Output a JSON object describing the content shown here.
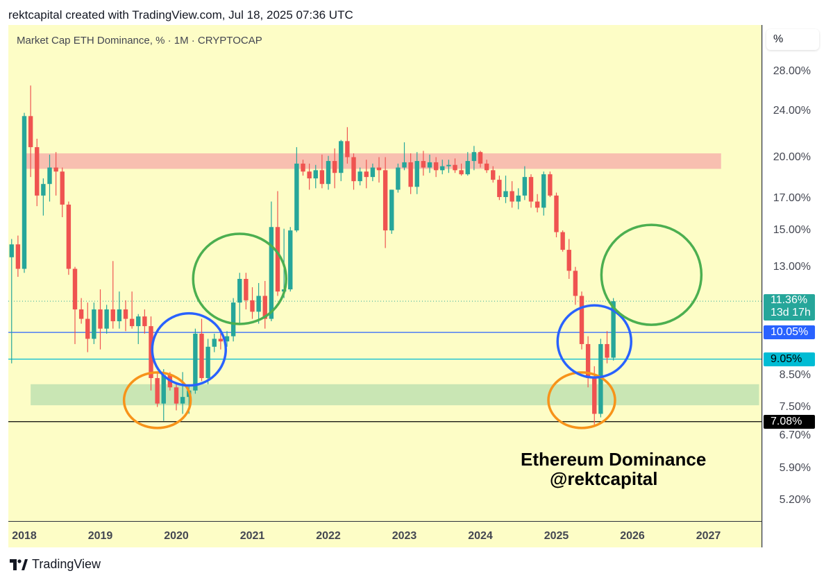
{
  "header": {
    "text": "rektcapital created with TradingView.com, Jul 18, 2025 07:36 UTC"
  },
  "symbol_label": "Market Cap ETH Dominance, % · 1M · CRYPTOCAP",
  "scale_button": "%",
  "watermark": {
    "line1": "Ethereum Dominance",
    "line2": "@rektcapital"
  },
  "footer": {
    "brand": "TradingView",
    "logo_icon": "tradingview-logo-icon"
  },
  "colors": {
    "background": "#fdfdc6",
    "up": "#26a69a",
    "down": "#ef5350",
    "resistance_zone": "#f8bfb0",
    "support_zone": "#c9e6b4",
    "orange_circle": "#f7931a",
    "blue_circle": "#2962ff",
    "green_circle": "#4caf50"
  },
  "chart_data": {
    "type": "candlestick",
    "title": "Market Cap ETH Dominance, % · 1M · CRYPTOCAP",
    "y_scale": "log",
    "y_ticks": [
      "28.00%",
      "24.00%",
      "20.00%",
      "17.00%",
      "15.00%",
      "13.00%",
      "8.50%",
      "7.50%",
      "6.70%",
      "5.90%",
      "5.20%"
    ],
    "x_ticks": [
      "2018",
      "2019",
      "2020",
      "2021",
      "2022",
      "2023",
      "2024",
      "2025",
      "2026",
      "2027"
    ],
    "price_badges": [
      {
        "label": "11.36%",
        "sub": "13d 17h",
        "value": 11.36,
        "bg": "#26a69a",
        "fg": "#ffffff"
      },
      {
        "label": "10.05%",
        "value": 10.05,
        "bg": "#2962ff",
        "fg": "#ffffff"
      },
      {
        "label": "9.05%",
        "value": 9.05,
        "bg": "#00bcd4",
        "fg": "#000000"
      },
      {
        "label": "7.08%",
        "value": 7.08,
        "bg": "#000000",
        "fg": "#ffffff"
      }
    ],
    "horizontal_lines": [
      {
        "value": 10.05,
        "color": "#2962ff"
      },
      {
        "value": 9.05,
        "color": "#00bcd4"
      },
      {
        "value": 7.08,
        "color": "#000000"
      },
      {
        "value": 11.36,
        "color": "#26a69a",
        "dotted": true
      }
    ],
    "zones": [
      {
        "name": "resistance",
        "from": 19.1,
        "to": 20.3,
        "x_start": "2018-01",
        "x_end": "2027-03"
      },
      {
        "name": "support",
        "from": 7.55,
        "to": 8.2,
        "x_start": "2018-02",
        "x_end": "2027-09"
      }
    ],
    "annotations": [
      {
        "shape": "circle",
        "color": "orange",
        "center_date": "2019-10",
        "center_value": 7.7
      },
      {
        "shape": "circle",
        "color": "blue",
        "center_date": "2020-03",
        "center_value": 9.4
      },
      {
        "shape": "circle",
        "color": "green",
        "center_date": "2020-11",
        "center_value": 12.4
      },
      {
        "shape": "circle",
        "color": "orange",
        "center_date": "2025-05",
        "center_value": 7.7
      },
      {
        "shape": "circle",
        "color": "blue",
        "center_date": "2025-07",
        "center_value": 9.7
      },
      {
        "shape": "circle",
        "color": "green",
        "center_date": "2026-04",
        "center_value": 12.6
      }
    ],
    "candles": [
      {
        "t": "2017-11",
        "o": 13.5,
        "h": 14.5,
        "l": 8.9,
        "c": 14.2
      },
      {
        "t": "2017-12",
        "o": 14.2,
        "h": 14.7,
        "l": 12.5,
        "c": 12.9
      },
      {
        "t": "2018-01",
        "o": 12.9,
        "h": 23.8,
        "l": 12.7,
        "c": 23.5
      },
      {
        "t": "2018-02",
        "o": 23.5,
        "h": 26.5,
        "l": 18.5,
        "c": 20.8
      },
      {
        "t": "2018-03",
        "o": 20.8,
        "h": 21.5,
        "l": 16.5,
        "c": 17.2
      },
      {
        "t": "2018-04",
        "o": 17.2,
        "h": 18.4,
        "l": 15.9,
        "c": 18.0
      },
      {
        "t": "2018-05",
        "o": 18.0,
        "h": 20.2,
        "l": 16.8,
        "c": 19.2
      },
      {
        "t": "2018-06",
        "o": 19.2,
        "h": 20.4,
        "l": 17.2,
        "c": 18.9
      },
      {
        "t": "2018-07",
        "o": 18.9,
        "h": 19.2,
        "l": 15.8,
        "c": 16.6
      },
      {
        "t": "2018-08",
        "o": 16.6,
        "h": 16.8,
        "l": 12.6,
        "c": 12.9
      },
      {
        "t": "2018-09",
        "o": 12.9,
        "h": 13.0,
        "l": 9.6,
        "c": 11.0
      },
      {
        "t": "2018-10",
        "o": 11.0,
        "h": 11.5,
        "l": 10.4,
        "c": 10.6
      },
      {
        "t": "2018-11",
        "o": 10.6,
        "h": 11.3,
        "l": 9.3,
        "c": 9.8
      },
      {
        "t": "2018-12",
        "o": 9.8,
        "h": 11.3,
        "l": 9.6,
        "c": 11.0
      },
      {
        "t": "2019-01",
        "o": 11.0,
        "h": 11.9,
        "l": 9.4,
        "c": 10.2
      },
      {
        "t": "2019-02",
        "o": 10.2,
        "h": 11.2,
        "l": 10.0,
        "c": 11.0
      },
      {
        "t": "2019-03",
        "o": 11.0,
        "h": 13.3,
        "l": 10.2,
        "c": 10.5
      },
      {
        "t": "2019-04",
        "o": 10.5,
        "h": 11.8,
        "l": 10.2,
        "c": 11.0
      },
      {
        "t": "2019-05",
        "o": 11.0,
        "h": 11.4,
        "l": 10.1,
        "c": 10.6
      },
      {
        "t": "2019-06",
        "o": 10.6,
        "h": 11.8,
        "l": 10.2,
        "c": 10.3
      },
      {
        "t": "2019-07",
        "o": 10.3,
        "h": 10.8,
        "l": 9.6,
        "c": 10.7
      },
      {
        "t": "2019-08",
        "o": 10.7,
        "h": 11.0,
        "l": 10.0,
        "c": 10.3
      },
      {
        "t": "2019-09",
        "o": 10.3,
        "h": 10.7,
        "l": 8.0,
        "c": 8.4
      },
      {
        "t": "2019-10",
        "o": 8.4,
        "h": 8.6,
        "l": 7.5,
        "c": 7.6
      },
      {
        "t": "2019-11",
        "o": 7.6,
        "h": 8.7,
        "l": 7.1,
        "c": 8.5
      },
      {
        "t": "2019-12",
        "o": 8.5,
        "h": 8.6,
        "l": 8.0,
        "c": 8.1
      },
      {
        "t": "2020-01",
        "o": 8.1,
        "h": 8.2,
        "l": 7.4,
        "c": 7.6
      },
      {
        "t": "2020-02",
        "o": 7.6,
        "h": 8.6,
        "l": 7.3,
        "c": 7.8
      },
      {
        "t": "2020-03",
        "o": 7.8,
        "h": 8.2,
        "l": 7.3,
        "c": 8.0
      },
      {
        "t": "2020-04",
        "o": 8.0,
        "h": 10.2,
        "l": 7.9,
        "c": 10.0
      },
      {
        "t": "2020-05",
        "o": 10.0,
        "h": 10.6,
        "l": 8.3,
        "c": 8.4
      },
      {
        "t": "2020-06",
        "o": 8.4,
        "h": 9.8,
        "l": 8.2,
        "c": 9.5
      },
      {
        "t": "2020-07",
        "o": 9.5,
        "h": 10.0,
        "l": 9.3,
        "c": 9.8
      },
      {
        "t": "2020-08",
        "o": 9.8,
        "h": 10.2,
        "l": 9.4,
        "c": 9.7
      },
      {
        "t": "2020-09",
        "o": 9.7,
        "h": 10.1,
        "l": 9.5,
        "c": 9.9
      },
      {
        "t": "2020-10",
        "o": 9.9,
        "h": 11.5,
        "l": 9.7,
        "c": 11.3
      },
      {
        "t": "2020-11",
        "o": 11.3,
        "h": 12.7,
        "l": 10.4,
        "c": 12.4
      },
      {
        "t": "2020-12",
        "o": 12.4,
        "h": 12.7,
        "l": 11.0,
        "c": 11.4
      },
      {
        "t": "2021-01",
        "o": 11.4,
        "h": 12.0,
        "l": 10.6,
        "c": 10.9
      },
      {
        "t": "2021-02",
        "o": 10.9,
        "h": 12.2,
        "l": 10.4,
        "c": 11.6
      },
      {
        "t": "2021-03",
        "o": 11.6,
        "h": 12.3,
        "l": 10.2,
        "c": 10.6
      },
      {
        "t": "2021-04",
        "o": 10.6,
        "h": 16.8,
        "l": 10.5,
        "c": 15.2
      },
      {
        "t": "2021-05",
        "o": 15.2,
        "h": 17.5,
        "l": 11.6,
        "c": 11.8
      },
      {
        "t": "2021-06",
        "o": 11.8,
        "h": 15.1,
        "l": 11.5,
        "c": 11.9
      },
      {
        "t": "2021-07",
        "o": 11.9,
        "h": 15.2,
        "l": 11.8,
        "c": 15.0
      },
      {
        "t": "2021-08",
        "o": 15.0,
        "h": 20.8,
        "l": 14.9,
        "c": 19.5
      },
      {
        "t": "2021-09",
        "o": 19.5,
        "h": 19.8,
        "l": 18.6,
        "c": 18.9
      },
      {
        "t": "2021-10",
        "o": 18.9,
        "h": 19.5,
        "l": 17.6,
        "c": 18.4
      },
      {
        "t": "2021-11",
        "o": 18.4,
        "h": 19.4,
        "l": 17.7,
        "c": 19.0
      },
      {
        "t": "2021-12",
        "o": 19.0,
        "h": 20.2,
        "l": 17.7,
        "c": 18.0
      },
      {
        "t": "2022-01",
        "o": 18.0,
        "h": 20.1,
        "l": 17.6,
        "c": 19.7
      },
      {
        "t": "2022-02",
        "o": 19.7,
        "h": 20.7,
        "l": 17.7,
        "c": 18.8
      },
      {
        "t": "2022-03",
        "o": 18.8,
        "h": 21.4,
        "l": 18.2,
        "c": 21.3
      },
      {
        "t": "2022-04",
        "o": 21.3,
        "h": 22.5,
        "l": 19.5,
        "c": 20.0
      },
      {
        "t": "2022-05",
        "o": 20.0,
        "h": 20.3,
        "l": 17.6,
        "c": 18.2
      },
      {
        "t": "2022-06",
        "o": 18.2,
        "h": 19.2,
        "l": 17.9,
        "c": 18.9
      },
      {
        "t": "2022-07",
        "o": 18.9,
        "h": 19.8,
        "l": 17.7,
        "c": 18.5
      },
      {
        "t": "2022-08",
        "o": 18.5,
        "h": 19.5,
        "l": 18.2,
        "c": 19.2
      },
      {
        "t": "2022-09",
        "o": 19.2,
        "h": 20.0,
        "l": 18.1,
        "c": 19.0
      },
      {
        "t": "2022-10",
        "o": 19.0,
        "h": 20.0,
        "l": 14.0,
        "c": 15.0
      },
      {
        "t": "2022-11",
        "o": 15.0,
        "h": 17.6,
        "l": 14.8,
        "c": 17.6
      },
      {
        "t": "2022-12",
        "o": 17.6,
        "h": 19.5,
        "l": 17.4,
        "c": 19.2
      },
      {
        "t": "2023-01",
        "o": 19.2,
        "h": 21.2,
        "l": 19.0,
        "c": 19.6
      },
      {
        "t": "2023-02",
        "o": 19.6,
        "h": 20.3,
        "l": 17.3,
        "c": 17.8
      },
      {
        "t": "2023-03",
        "o": 17.8,
        "h": 20.4,
        "l": 17.3,
        "c": 19.7
      },
      {
        "t": "2023-04",
        "o": 19.7,
        "h": 20.5,
        "l": 18.6,
        "c": 19.2
      },
      {
        "t": "2023-05",
        "o": 19.2,
        "h": 20.2,
        "l": 18.8,
        "c": 19.6
      },
      {
        "t": "2023-06",
        "o": 19.6,
        "h": 20.0,
        "l": 18.5,
        "c": 19.0
      },
      {
        "t": "2023-07",
        "o": 19.0,
        "h": 19.8,
        "l": 18.7,
        "c": 19.3
      },
      {
        "t": "2023-08",
        "o": 19.3,
        "h": 19.8,
        "l": 18.8,
        "c": 19.4
      },
      {
        "t": "2023-09",
        "o": 19.4,
        "h": 19.9,
        "l": 18.8,
        "c": 19.0
      },
      {
        "t": "2023-10",
        "o": 19.0,
        "h": 19.5,
        "l": 18.6,
        "c": 18.7
      },
      {
        "t": "2023-11",
        "o": 18.7,
        "h": 20.4,
        "l": 18.6,
        "c": 19.7
      },
      {
        "t": "2023-12",
        "o": 19.7,
        "h": 20.9,
        "l": 19.0,
        "c": 20.4
      },
      {
        "t": "2024-01",
        "o": 20.4,
        "h": 20.5,
        "l": 19.2,
        "c": 19.5
      },
      {
        "t": "2024-02",
        "o": 19.5,
        "h": 19.8,
        "l": 18.8,
        "c": 19.0
      },
      {
        "t": "2024-03",
        "o": 19.0,
        "h": 19.3,
        "l": 18.1,
        "c": 18.3
      },
      {
        "t": "2024-04",
        "o": 18.3,
        "h": 18.6,
        "l": 16.9,
        "c": 17.1
      },
      {
        "t": "2024-05",
        "o": 17.1,
        "h": 18.6,
        "l": 16.7,
        "c": 17.5
      },
      {
        "t": "2024-06",
        "o": 17.5,
        "h": 18.2,
        "l": 16.4,
        "c": 16.8
      },
      {
        "t": "2024-07",
        "o": 16.8,
        "h": 17.7,
        "l": 16.3,
        "c": 17.2
      },
      {
        "t": "2024-08",
        "o": 17.2,
        "h": 19.3,
        "l": 16.9,
        "c": 18.5
      },
      {
        "t": "2024-09",
        "o": 18.5,
        "h": 18.7,
        "l": 16.4,
        "c": 16.8
      },
      {
        "t": "2024-10",
        "o": 16.8,
        "h": 17.3,
        "l": 16.1,
        "c": 16.4
      },
      {
        "t": "2024-11",
        "o": 16.4,
        "h": 18.9,
        "l": 15.9,
        "c": 18.7
      },
      {
        "t": "2024-12",
        "o": 18.7,
        "h": 18.9,
        "l": 17.1,
        "c": 17.2
      },
      {
        "t": "2025-01",
        "o": 17.2,
        "h": 17.4,
        "l": 14.6,
        "c": 14.9
      },
      {
        "t": "2025-02",
        "o": 14.9,
        "h": 15.0,
        "l": 13.8,
        "c": 13.9
      },
      {
        "t": "2025-03",
        "o": 13.9,
        "h": 14.5,
        "l": 12.4,
        "c": 12.8
      },
      {
        "t": "2025-04",
        "o": 12.8,
        "h": 13.0,
        "l": 11.2,
        "c": 11.6
      },
      {
        "t": "2025-05",
        "o": 11.6,
        "h": 11.8,
        "l": 9.4,
        "c": 9.6
      },
      {
        "t": "2025-06",
        "o": 9.6,
        "h": 9.9,
        "l": 8.1,
        "c": 8.4
      },
      {
        "t": "2025-07",
        "o": 8.4,
        "h": 8.8,
        "l": 7.0,
        "c": 7.3
      },
      {
        "t": "2025-08",
        "o": 7.3,
        "h": 9.8,
        "l": 7.2,
        "c": 9.6
      },
      {
        "t": "2025-09",
        "o": 9.6,
        "h": 10.1,
        "l": 8.9,
        "c": 9.1
      },
      {
        "t": "2025-10",
        "o": 9.1,
        "h": 11.5,
        "l": 9.0,
        "c": 11.36
      }
    ]
  }
}
